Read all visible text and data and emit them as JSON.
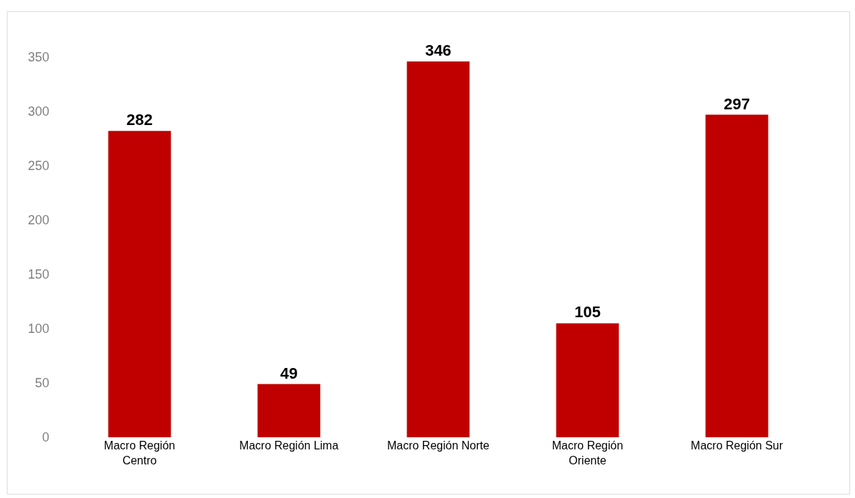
{
  "chart_data": {
    "type": "bar",
    "categories": [
      "Macro Región Centro",
      "Macro Región Lima",
      "Macro Región Norte",
      "Macro Región Oriente",
      "Macro Región Sur"
    ],
    "values": [
      282,
      49,
      346,
      105,
      297
    ],
    "color": "#c00000",
    "ylim": [
      0,
      350
    ],
    "yticks": [
      0,
      50,
      100,
      150,
      200,
      250,
      300,
      350
    ],
    "legend": false,
    "data_labels": true
  }
}
